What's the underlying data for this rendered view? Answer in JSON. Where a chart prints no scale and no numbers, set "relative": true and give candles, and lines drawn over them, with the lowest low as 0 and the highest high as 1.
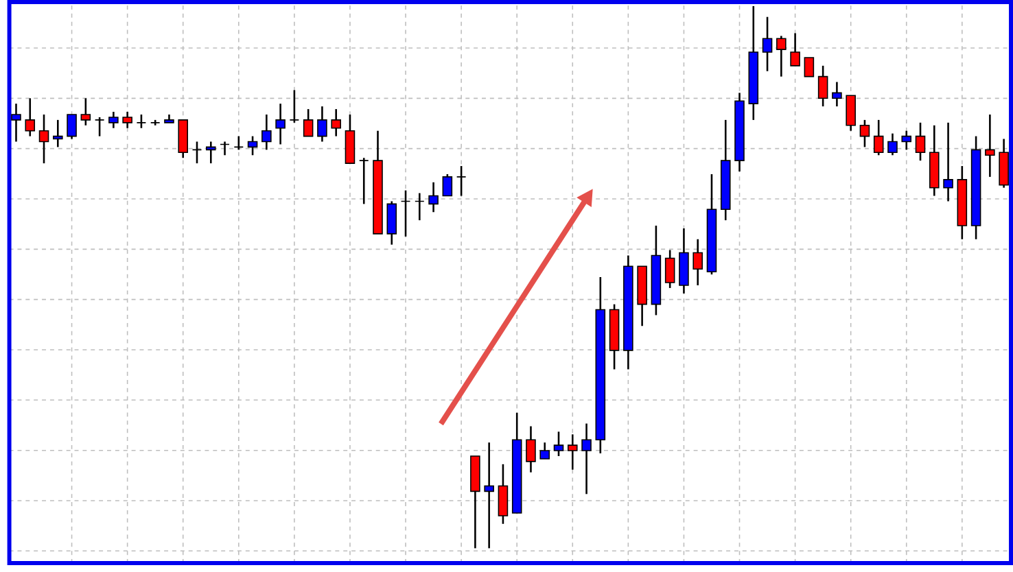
{
  "chart_data": {
    "type": "candlestick",
    "relative": true,
    "grid": true,
    "categories": [
      null,
      null,
      null,
      null,
      null,
      null,
      null,
      null,
      null,
      null,
      null,
      null,
      null,
      null,
      null,
      null,
      null,
      null,
      null,
      null,
      null,
      null,
      null,
      null,
      null,
      null,
      null,
      null,
      null,
      null,
      null,
      null,
      null,
      null,
      null,
      null,
      null,
      null,
      null,
      null,
      null,
      null,
      null,
      null,
      null,
      null,
      null,
      null,
      null,
      null,
      null,
      null,
      null,
      null,
      null,
      null,
      null,
      null,
      null,
      null,
      null,
      null,
      null,
      null,
      null,
      null,
      null,
      null,
      null,
      null,
      null,
      null
    ],
    "ohlc": [
      [
        0.79,
        0.82,
        0.75,
        0.8
      ],
      [
        0.79,
        0.83,
        0.76,
        0.77
      ],
      [
        0.77,
        0.8,
        0.71,
        0.75
      ],
      [
        0.755,
        0.79,
        0.74,
        0.76
      ],
      [
        0.76,
        0.8,
        0.755,
        0.8
      ],
      [
        0.8,
        0.83,
        0.78,
        0.79
      ],
      [
        0.79,
        0.795,
        0.76,
        0.79
      ],
      [
        0.785,
        0.805,
        0.775,
        0.795
      ],
      [
        0.795,
        0.805,
        0.775,
        0.785
      ],
      [
        0.785,
        0.8,
        0.775,
        0.785
      ],
      [
        0.785,
        0.79,
        0.78,
        0.785
      ],
      [
        0.785,
        0.8,
        0.785,
        0.79
      ],
      [
        0.79,
        0.79,
        0.72,
        0.73
      ],
      [
        0.735,
        0.75,
        0.71,
        0.735
      ],
      [
        0.735,
        0.75,
        0.71,
        0.74
      ],
      [
        0.745,
        0.75,
        0.725,
        0.745
      ],
      [
        0.74,
        0.76,
        0.735,
        0.74
      ],
      [
        0.74,
        0.76,
        0.725,
        0.75
      ],
      [
        0.75,
        0.8,
        0.735,
        0.77
      ],
      [
        0.775,
        0.82,
        0.745,
        0.79
      ],
      [
        0.79,
        0.845,
        0.785,
        0.79
      ],
      [
        0.79,
        0.81,
        0.76,
        0.76
      ],
      [
        0.76,
        0.815,
        0.75,
        0.79
      ],
      [
        0.79,
        0.81,
        0.76,
        0.775
      ],
      [
        0.77,
        0.8,
        0.71,
        0.71
      ],
      [
        0.715,
        0.72,
        0.635,
        0.715
      ],
      [
        0.715,
        0.77,
        0.58,
        0.58
      ],
      [
        0.58,
        0.64,
        0.56,
        0.635
      ],
      [
        0.64,
        0.66,
        0.575,
        0.64
      ],
      [
        0.64,
        0.655,
        0.605,
        0.64
      ],
      [
        0.635,
        0.675,
        0.62,
        0.65
      ],
      [
        0.65,
        0.69,
        0.65,
        0.685
      ],
      [
        0.685,
        0.705,
        0.65,
        0.685
      ],
      [
        0.17,
        0.17,
        0,
        0.105
      ],
      [
        0.105,
        0.195,
        0,
        0.115
      ],
      [
        0.115,
        0.155,
        0.045,
        0.06
      ],
      [
        0.065,
        0.25,
        0.065,
        0.2
      ],
      [
        0.2,
        0.225,
        0.14,
        0.16
      ],
      [
        0.165,
        0.195,
        0.165,
        0.18
      ],
      [
        0.18,
        0.215,
        0.17,
        0.19
      ],
      [
        0.19,
        0.21,
        0.145,
        0.18
      ],
      [
        0.18,
        0.23,
        0.1,
        0.2
      ],
      [
        0.2,
        0.5,
        0.175,
        0.44
      ],
      [
        0.44,
        0.45,
        0.33,
        0.365
      ],
      [
        0.365,
        0.54,
        0.33,
        0.52
      ],
      [
        0.52,
        0.52,
        0.41,
        0.45
      ],
      [
        0.45,
        0.595,
        0.43,
        0.54
      ],
      [
        0.535,
        0.55,
        0.48,
        0.49
      ],
      [
        0.485,
        0.59,
        0.47,
        0.545
      ],
      [
        0.545,
        0.57,
        0.485,
        0.515
      ],
      [
        0.51,
        0.69,
        0.505,
        0.625
      ],
      [
        0.625,
        0.79,
        0.605,
        0.715
      ],
      [
        0.715,
        0.84,
        0.695,
        0.825
      ],
      [
        0.82,
        1,
        0.79,
        0.915
      ],
      [
        0.915,
        0.98,
        0.88,
        0.94
      ],
      [
        0.94,
        0.945,
        0.87,
        0.92
      ],
      [
        0.915,
        0.95,
        0.89,
        0.89
      ],
      [
        0.905,
        0.905,
        0.87,
        0.87
      ],
      [
        0.87,
        0.89,
        0.815,
        0.83
      ],
      [
        0.83,
        0.86,
        0.815,
        0.84
      ],
      [
        0.835,
        0.835,
        0.77,
        0.78
      ],
      [
        0.78,
        0.79,
        0.74,
        0.76
      ],
      [
        0.76,
        0.79,
        0.725,
        0.73
      ],
      [
        0.73,
        0.765,
        0.725,
        0.75
      ],
      [
        0.75,
        0.77,
        0.735,
        0.76
      ],
      [
        0.76,
        0.785,
        0.715,
        0.73
      ],
      [
        0.73,
        0.78,
        0.65,
        0.665
      ],
      [
        0.665,
        0.785,
        0.64,
        0.68
      ],
      [
        0.68,
        0.705,
        0.57,
        0.595
      ],
      [
        0.595,
        0.76,
        0.57,
        0.735
      ],
      [
        0.735,
        0.8,
        0.685,
        0.725
      ],
      [
        0.73,
        0.755,
        0.665,
        0.67
      ]
    ]
  }
}
